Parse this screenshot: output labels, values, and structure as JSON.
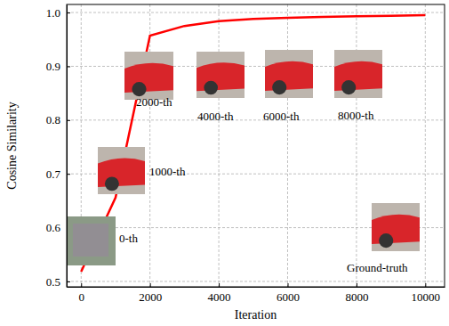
{
  "chart_data": {
    "type": "line",
    "x_label": "Iteration",
    "y_label": "Cosine Similarity",
    "x": [
      0,
      1000,
      2000,
      3000,
      4000,
      5000,
      6000,
      7000,
      8000,
      9000,
      10000
    ],
    "series": [
      {
        "color": "#ff0000",
        "values": [
          0.518,
          0.656,
          0.957,
          0.975,
          0.984,
          0.988,
          0.99,
          0.992,
          0.993,
          0.994,
          0.995
        ]
      }
    ],
    "xlim": [
      -420,
      10560
    ],
    "xticks": [
      0,
      2000,
      4000,
      6000,
      8000,
      10000
    ],
    "ylim": [
      0.49,
      1.015
    ],
    "yticks": [
      0.5,
      0.6,
      0.7,
      0.8,
      0.9,
      {
        "value": 1,
        "label": "1.0"
      }
    ],
    "grid": true,
    "annotations": [
      {
        "text": "0-th"
      },
      {
        "text": "1000-th"
      },
      {
        "text": "2000-th"
      },
      {
        "text": "4000-th"
      },
      {
        "text": "6000-th"
      },
      {
        "text": "8000-th"
      },
      {
        "text": "Ground-truth"
      }
    ]
  }
}
